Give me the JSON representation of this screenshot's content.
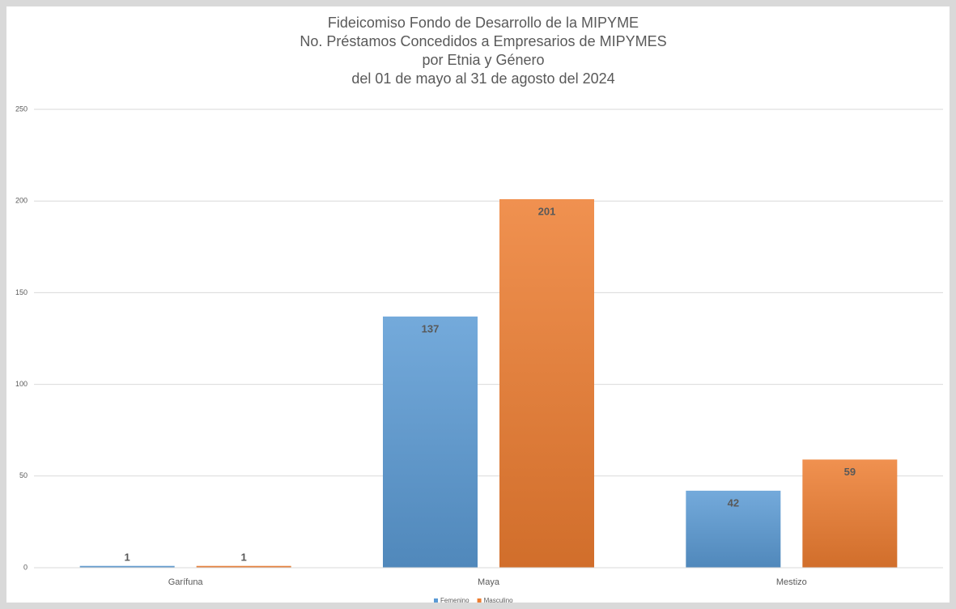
{
  "chart_data": {
    "type": "bar",
    "title": [
      "Fideicomiso Fondo de Desarrollo de la MIPYME",
      "No. Préstamos Concedidos a Empresarios de MIPYMES",
      "por Etnia y Género",
      "del 01 de mayo al 31 de agosto del 2024"
    ],
    "categories": [
      "Garífuna",
      "Maya",
      "Mestizo"
    ],
    "series": [
      {
        "name": "Femenino",
        "color": "#5b9bd5",
        "values": [
          1,
          137,
          42
        ]
      },
      {
        "name": "Masculino",
        "color": "#ed7d31",
        "values": [
          1,
          201,
          59
        ]
      }
    ],
    "ylim": [
      0,
      250
    ],
    "yticks": [
      0,
      50,
      100,
      150,
      200,
      250
    ],
    "grid": true,
    "legend": "bottom"
  }
}
